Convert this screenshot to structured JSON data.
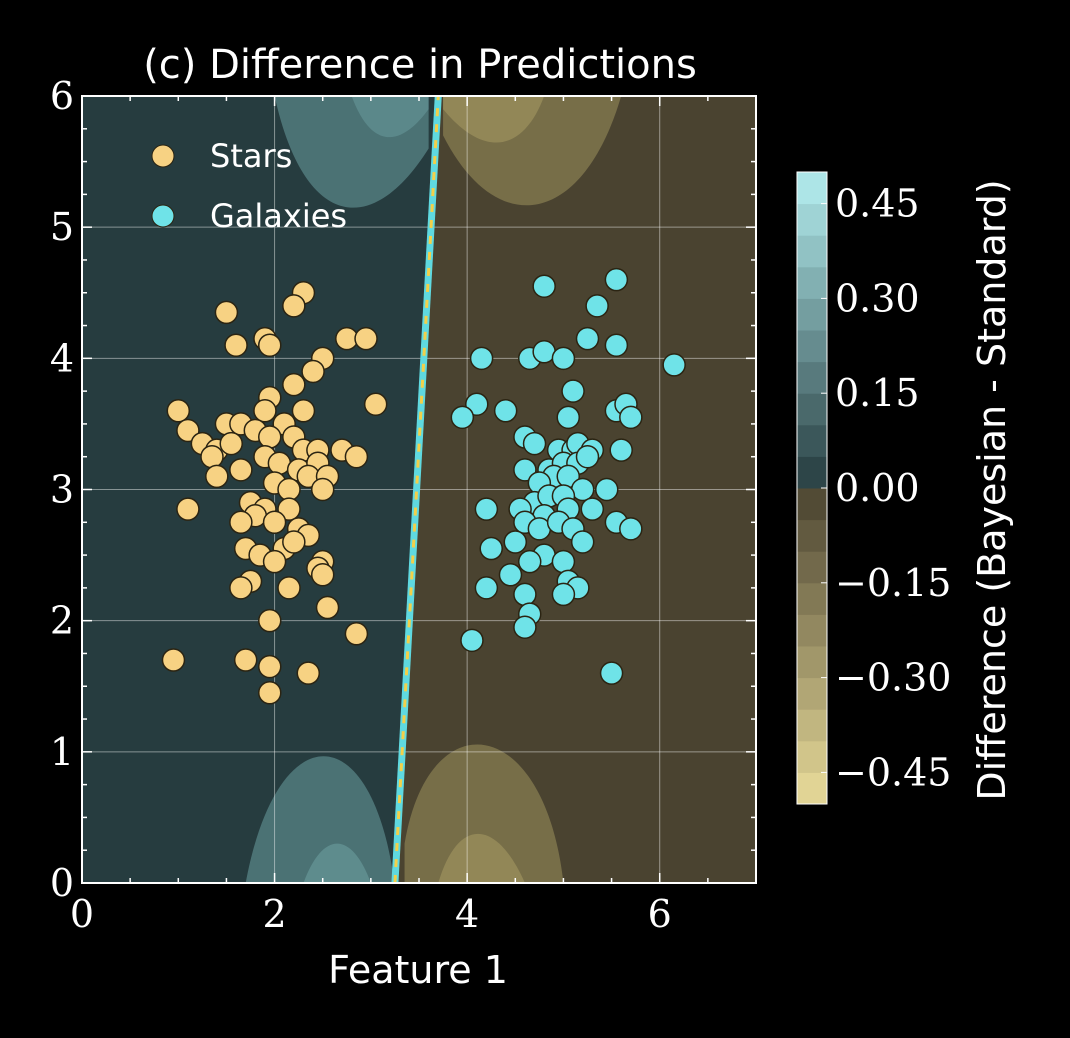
{
  "chart_data": {
    "type": "scatter",
    "title": "(c) Difference in Predictions",
    "xlabel": "Feature 1",
    "ylabel": "",
    "xlim": [
      0,
      7
    ],
    "ylim": [
      0,
      6
    ],
    "xticks": [
      "0",
      "2",
      "4",
      "6"
    ],
    "yticks": [
      "0",
      "1",
      "2",
      "3",
      "4",
      "5",
      "6"
    ],
    "grid": true,
    "legend_position": "top-left",
    "background_colors": {
      "negative": "#4a4330",
      "zero": "#263c3f",
      "positive": "#7ab3b5"
    },
    "decision_boundary": {
      "line": [
        [
          3.25,
          0
        ],
        [
          3.7,
          6
        ]
      ],
      "colors": [
        "#5fd9e0",
        "#f2d04a"
      ]
    },
    "colorbar": {
      "label": "Difference (Bayesian - Standard)",
      "range": [
        -0.5,
        0.5
      ],
      "ticks": [
        "0.45",
        "0.30",
        "0.15",
        "0.00",
        "−0.15",
        "−0.30",
        "−0.45"
      ],
      "tick_values": [
        0.45,
        0.3,
        0.15,
        0.0,
        -0.15,
        -0.3,
        -0.45
      ],
      "low_color": "#e9dc9a",
      "high_color": "#b4eef0"
    },
    "series": [
      {
        "name": "Stars",
        "color": "#f7d283",
        "points": [
          [
            2.3,
            4.5
          ],
          [
            2.2,
            4.4
          ],
          [
            1.5,
            4.35
          ],
          [
            1.6,
            4.1
          ],
          [
            1.9,
            4.15
          ],
          [
            1.95,
            4.1
          ],
          [
            2.75,
            4.15
          ],
          [
            2.95,
            4.15
          ],
          [
            2.5,
            4.0
          ],
          [
            2.4,
            3.9
          ],
          [
            2.2,
            3.8
          ],
          [
            1.0,
            3.6
          ],
          [
            1.95,
            3.7
          ],
          [
            1.9,
            3.6
          ],
          [
            2.3,
            3.6
          ],
          [
            3.05,
            3.65
          ],
          [
            1.5,
            3.5
          ],
          [
            1.65,
            3.5
          ],
          [
            1.8,
            3.45
          ],
          [
            2.1,
            3.5
          ],
          [
            1.1,
            3.45
          ],
          [
            1.25,
            3.35
          ],
          [
            1.4,
            3.3
          ],
          [
            1.55,
            3.35
          ],
          [
            1.95,
            3.4
          ],
          [
            2.2,
            3.4
          ],
          [
            2.3,
            3.3
          ],
          [
            2.45,
            3.3
          ],
          [
            2.7,
            3.3
          ],
          [
            2.85,
            3.25
          ],
          [
            1.35,
            3.25
          ],
          [
            1.65,
            3.15
          ],
          [
            1.9,
            3.25
          ],
          [
            2.05,
            3.2
          ],
          [
            2.25,
            3.15
          ],
          [
            2.45,
            3.2
          ],
          [
            2.35,
            3.1
          ],
          [
            2.55,
            3.1
          ],
          [
            2.0,
            3.05
          ],
          [
            1.4,
            3.1
          ],
          [
            2.5,
            3.0
          ],
          [
            2.15,
            3.0
          ],
          [
            1.75,
            2.9
          ],
          [
            1.9,
            2.85
          ],
          [
            2.15,
            2.85
          ],
          [
            1.1,
            2.85
          ],
          [
            1.8,
            2.8
          ],
          [
            2.0,
            2.75
          ],
          [
            1.65,
            2.75
          ],
          [
            2.25,
            2.7
          ],
          [
            2.35,
            2.65
          ],
          [
            2.1,
            2.55
          ],
          [
            2.2,
            2.6
          ],
          [
            1.7,
            2.55
          ],
          [
            1.85,
            2.5
          ],
          [
            2.0,
            2.45
          ],
          [
            2.5,
            2.45
          ],
          [
            2.45,
            2.4
          ],
          [
            2.5,
            2.35
          ],
          [
            1.75,
            2.3
          ],
          [
            1.65,
            2.25
          ],
          [
            2.15,
            2.25
          ],
          [
            2.55,
            2.1
          ],
          [
            1.95,
            2.0
          ],
          [
            2.85,
            1.9
          ],
          [
            0.95,
            1.7
          ],
          [
            1.7,
            1.7
          ],
          [
            1.95,
            1.65
          ],
          [
            2.35,
            1.6
          ],
          [
            1.95,
            1.45
          ]
        ]
      },
      {
        "name": "Galaxies",
        "color": "#6fe3e8",
        "points": [
          [
            5.55,
            4.6
          ],
          [
            4.8,
            4.55
          ],
          [
            5.35,
            4.4
          ],
          [
            5.25,
            4.15
          ],
          [
            5.55,
            4.1
          ],
          [
            4.15,
            4.0
          ],
          [
            4.65,
            4.0
          ],
          [
            4.8,
            4.05
          ],
          [
            5.0,
            4.0
          ],
          [
            6.15,
            3.95
          ],
          [
            5.1,
            3.75
          ],
          [
            4.1,
            3.65
          ],
          [
            3.95,
            3.55
          ],
          [
            4.4,
            3.6
          ],
          [
            5.55,
            3.6
          ],
          [
            5.65,
            3.65
          ],
          [
            5.7,
            3.55
          ],
          [
            5.05,
            3.55
          ],
          [
            4.6,
            3.4
          ],
          [
            4.7,
            3.35
          ],
          [
            4.95,
            3.3
          ],
          [
            5.1,
            3.3
          ],
          [
            5.15,
            3.35
          ],
          [
            5.3,
            3.3
          ],
          [
            5.6,
            3.3
          ],
          [
            4.6,
            3.15
          ],
          [
            4.85,
            3.15
          ],
          [
            5.0,
            3.2
          ],
          [
            5.15,
            3.2
          ],
          [
            5.25,
            3.25
          ],
          [
            4.9,
            3.1
          ],
          [
            5.05,
            3.1
          ],
          [
            4.75,
            3.05
          ],
          [
            5.2,
            3.0
          ],
          [
            5.45,
            3.0
          ],
          [
            4.7,
            2.9
          ],
          [
            4.85,
            2.95
          ],
          [
            5.0,
            2.95
          ],
          [
            4.2,
            2.85
          ],
          [
            4.55,
            2.85
          ],
          [
            4.8,
            2.8
          ],
          [
            5.05,
            2.85
          ],
          [
            5.3,
            2.85
          ],
          [
            4.6,
            2.75
          ],
          [
            4.75,
            2.7
          ],
          [
            4.95,
            2.75
          ],
          [
            5.1,
            2.7
          ],
          [
            5.55,
            2.75
          ],
          [
            5.7,
            2.7
          ],
          [
            5.2,
            2.6
          ],
          [
            4.5,
            2.6
          ],
          [
            4.25,
            2.55
          ],
          [
            4.8,
            2.5
          ],
          [
            5.0,
            2.45
          ],
          [
            4.65,
            2.45
          ],
          [
            4.45,
            2.35
          ],
          [
            5.05,
            2.3
          ],
          [
            5.15,
            2.25
          ],
          [
            4.2,
            2.25
          ],
          [
            4.6,
            2.2
          ],
          [
            5.0,
            2.2
          ],
          [
            4.65,
            2.05
          ],
          [
            4.6,
            1.95
          ],
          [
            4.05,
            1.85
          ],
          [
            5.5,
            1.6
          ]
        ]
      }
    ]
  }
}
